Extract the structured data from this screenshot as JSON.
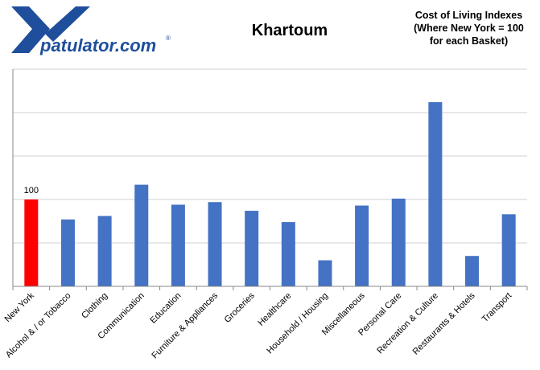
{
  "header": {
    "logo_text": "patulator.com",
    "logo_mark": "®",
    "title": "Khartoum",
    "subtitle_lines": [
      "Cost of Living Indexes",
      "(Where New York = 100",
      "for each Basket)"
    ]
  },
  "colors": {
    "highlight": "#ff0000",
    "bar": "#4472c4",
    "logo": "#1f4e9c",
    "grid": "#d0d0d0"
  },
  "chart_data": {
    "type": "bar",
    "title": "Khartoum",
    "subtitle": "Cost of Living Indexes (Where New York = 100 for each Basket)",
    "categories": [
      "New York",
      "Alcohol & / or Tobacco",
      "Clothing",
      "Communication",
      "Education",
      "Furniture & Appliances",
      "Groceries",
      "Healthcare",
      "Household / Housing",
      "Miscellaneous",
      "Personal Care",
      "Recreation & Culture",
      "Restaurants & Hotels",
      "Transport"
    ],
    "values": [
      100,
      77,
      81,
      117,
      94,
      97,
      87,
      74,
      30,
      93,
      101,
      212,
      35,
      83
    ],
    "data_labels": [
      {
        "index": 0,
        "text": "100"
      }
    ],
    "highlight_index": 0,
    "ylim": [
      0,
      250
    ],
    "ytick_step": 50,
    "show_ytick_labels": false,
    "grid": true,
    "legend": "none"
  }
}
